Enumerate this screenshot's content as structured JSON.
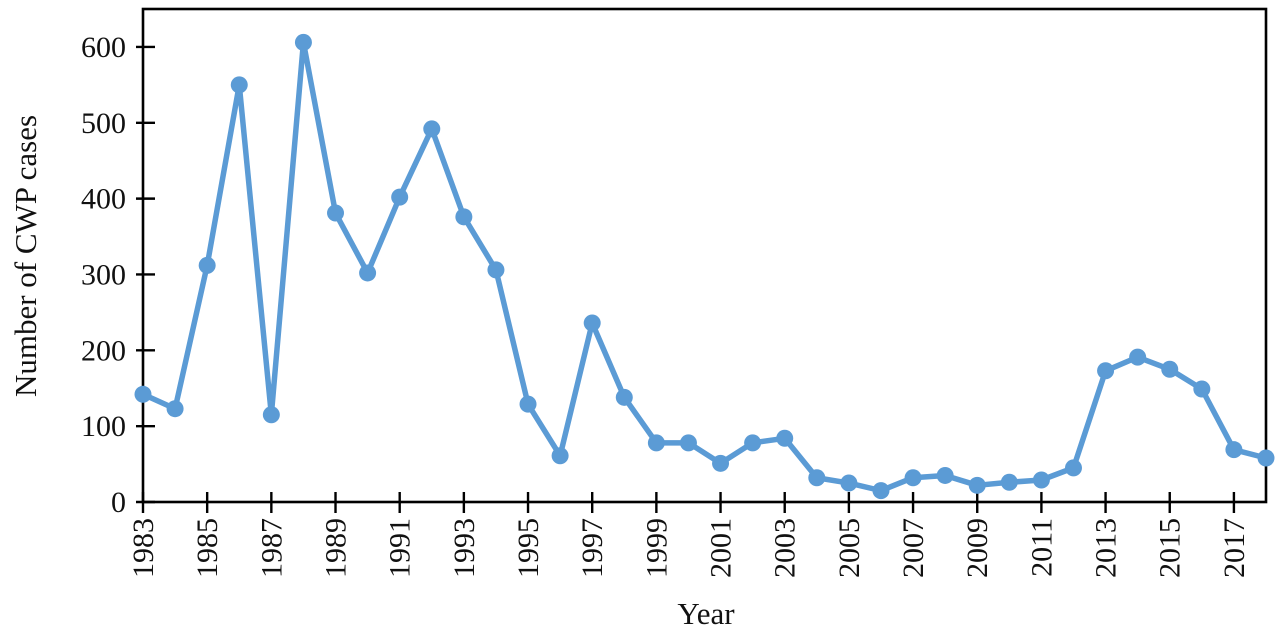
{
  "figure": {
    "background": "#ffffff",
    "axis_color": "#000000",
    "accent_color": "#5b9bd5"
  },
  "chart_data": {
    "type": "line",
    "title": "",
    "xlabel": "Year",
    "ylabel": "Number of CWP cases",
    "x": [
      1983,
      1984,
      1985,
      1986,
      1987,
      1988,
      1989,
      1990,
      1991,
      1992,
      1993,
      1994,
      1995,
      1996,
      1997,
      1998,
      1999,
      2000,
      2001,
      2002,
      2003,
      2004,
      2005,
      2006,
      2007,
      2008,
      2009,
      2010,
      2011,
      2012,
      2013,
      2014,
      2015,
      2016,
      2017,
      2018
    ],
    "series": [
      {
        "name": "Number of CWP cases",
        "values": [
          142,
          123,
          312,
          550,
          115,
          606,
          381,
          302,
          402,
          492,
          376,
          306,
          129,
          61,
          236,
          138,
          78,
          78,
          51,
          78,
          84,
          32,
          25,
          15,
          32,
          35,
          22,
          26,
          29,
          45,
          173,
          191,
          175,
          149,
          69,
          58
        ]
      }
    ],
    "xlim": [
      1983,
      2018
    ],
    "ylim": [
      0,
      650
    ],
    "yticks": [
      0,
      100,
      200,
      300,
      400,
      500,
      600
    ],
    "xticks": [
      1983,
      1985,
      1987,
      1989,
      1991,
      1993,
      1995,
      1997,
      1999,
      2001,
      2003,
      2005,
      2007,
      2009,
      2011,
      2013,
      2015,
      2017
    ],
    "grid": false,
    "legend_position": "none",
    "marker": "circle",
    "line_color": "#5b9bd5",
    "marker_color": "#5b9bd5"
  }
}
